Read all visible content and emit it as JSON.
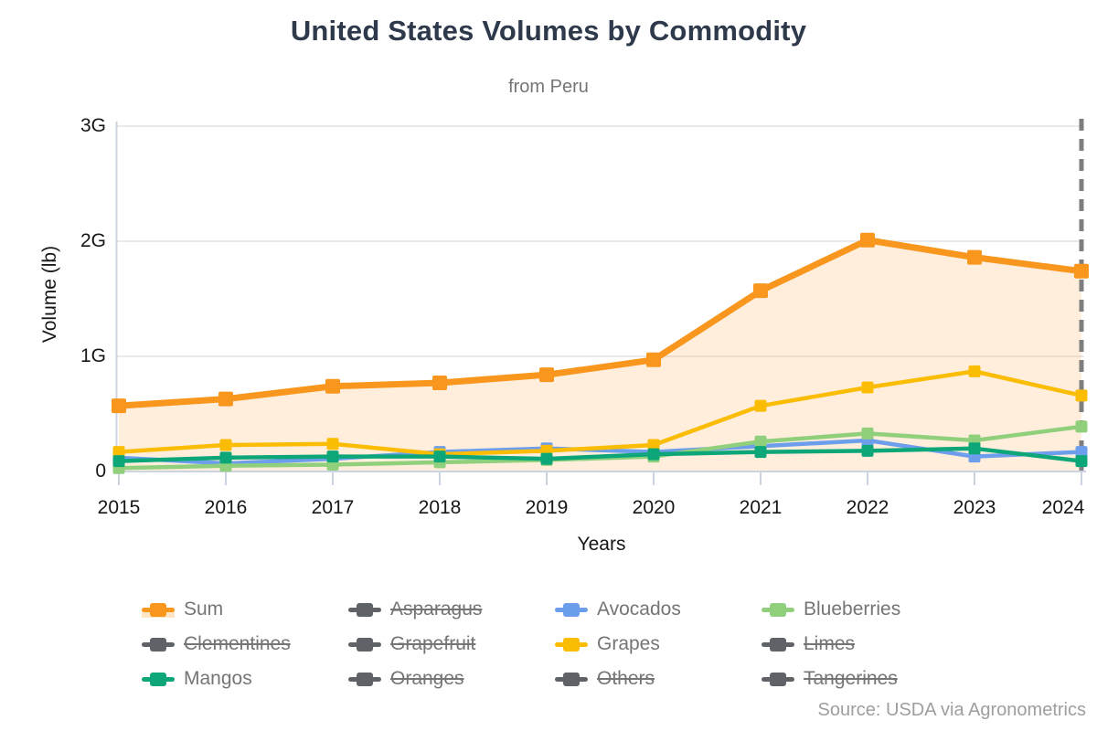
{
  "chart_data": {
    "type": "line",
    "title": "United States Volumes by Commodity",
    "subtitle": "from Peru",
    "xlabel": "Years",
    "ylabel": "Volume (lb)",
    "x": [
      "2015",
      "2016",
      "2017",
      "2018",
      "2019",
      "2020",
      "2021",
      "2022",
      "2023",
      "2024"
    ],
    "y_ticks": [
      "0",
      "1G",
      "2G",
      "3G"
    ],
    "ylim_G": [
      0,
      3
    ],
    "grid": true,
    "dashed_vline_x": "2024",
    "series": [
      {
        "name": "Sum",
        "color": "#f8961d",
        "area": true,
        "values_G": [
          0.57,
          0.63,
          0.74,
          0.77,
          0.84,
          0.97,
          1.57,
          2.01,
          1.86,
          1.74
        ]
      },
      {
        "name": "Avocados",
        "color": "#6d9eeb",
        "area": false,
        "values_G": [
          0.12,
          0.07,
          0.11,
          0.17,
          0.2,
          0.17,
          0.22,
          0.27,
          0.13,
          0.17
        ]
      },
      {
        "name": "Blueberries",
        "color": "#90d07d",
        "area": false,
        "values_G": [
          0.03,
          0.05,
          0.06,
          0.08,
          0.1,
          0.13,
          0.26,
          0.33,
          0.27,
          0.39
        ]
      },
      {
        "name": "Grapes",
        "color": "#fbbc04",
        "area": false,
        "values_G": [
          0.17,
          0.23,
          0.24,
          0.15,
          0.18,
          0.23,
          0.57,
          0.73,
          0.87,
          0.66
        ]
      },
      {
        "name": "Mangos",
        "color": "#0ca678",
        "area": false,
        "values_G": [
          0.09,
          0.12,
          0.13,
          0.13,
          0.11,
          0.15,
          0.17,
          0.18,
          0.2,
          0.09
        ]
      }
    ],
    "disabled_series": [
      "Asparagus",
      "Clementines",
      "Grapefruit",
      "Limes",
      "Oranges",
      "Others",
      "Tangerines"
    ]
  },
  "legend": {
    "items": [
      {
        "label": "Sum",
        "color": "#f8961d",
        "active": true,
        "area": true
      },
      {
        "label": "Asparagus",
        "color": "#5f6368",
        "active": false,
        "area": false
      },
      {
        "label": "Avocados",
        "color": "#6d9eeb",
        "active": true,
        "area": false
      },
      {
        "label": "Blueberries",
        "color": "#90d07d",
        "active": true,
        "area": false
      },
      {
        "label": "Clementines",
        "color": "#5f6368",
        "active": false,
        "area": false
      },
      {
        "label": "Grapefruit",
        "color": "#5f6368",
        "active": false,
        "area": false
      },
      {
        "label": "Grapes",
        "color": "#fbbc04",
        "active": true,
        "area": false
      },
      {
        "label": "Limes",
        "color": "#5f6368",
        "active": false,
        "area": false
      },
      {
        "label": "Mangos",
        "color": "#0ca678",
        "active": true,
        "area": false
      },
      {
        "label": "Oranges",
        "color": "#5f6368",
        "active": false,
        "area": false
      },
      {
        "label": "Others",
        "color": "#5f6368",
        "active": false,
        "area": false
      },
      {
        "label": "Tangerines",
        "color": "#5f6368",
        "active": false,
        "area": false
      }
    ]
  },
  "footer": {
    "source": "Source: USDA via Agronometrics"
  },
  "colors": {
    "title": "#2e3a4c",
    "subtitle": "#757575",
    "gridline": "#e4e4e4",
    "axis": "#ccd4e2",
    "dashed_line": "#7e7e7e",
    "legend_label": "#757575",
    "disabled_series": "#5f6368",
    "source": "#9e9e9e"
  }
}
